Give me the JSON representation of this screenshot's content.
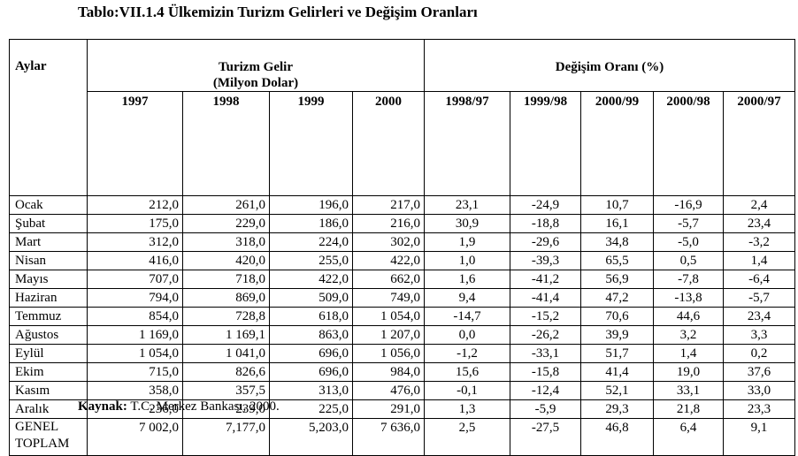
{
  "title": "Tablo:VII.1.4 Ülkemizin Turizm Gelirleri ve Değişim Oranları",
  "header": {
    "months_label": "Aylar",
    "group1_line1": "Turizm Gelir",
    "group1_line2": "(Milyon Dolar)",
    "group2": "Değişim Oranı (%)",
    "years": [
      "1997",
      "1998",
      "1999",
      "2000"
    ],
    "changes": [
      "1998/97",
      "1999/98",
      "2000/99",
      "2000/98",
      "2000/97"
    ]
  },
  "rows": [
    {
      "month": "Ocak",
      "v": [
        "212,0",
        "261,0",
        "196,0",
        "217,0"
      ],
      "c": [
        "23,1",
        "-24,9",
        "10,7",
        "-16,9",
        "2,4"
      ]
    },
    {
      "month": "Şubat",
      "v": [
        "175,0",
        "229,0",
        "186,0",
        "216,0"
      ],
      "c": [
        "30,9",
        "-18,8",
        "16,1",
        "-5,7",
        "23,4"
      ]
    },
    {
      "month": "Mart",
      "v": [
        "312,0",
        "318,0",
        "224,0",
        "302,0"
      ],
      "c": [
        "1,9",
        "-29,6",
        "34,8",
        "-5,0",
        "-3,2"
      ]
    },
    {
      "month": "Nisan",
      "v": [
        "416,0",
        "420,0",
        "255,0",
        "422,0"
      ],
      "c": [
        "1,0",
        "-39,3",
        "65,5",
        "0,5",
        "1,4"
      ]
    },
    {
      "month": "Mayıs",
      "v": [
        "707,0",
        "718,0",
        "422,0",
        "662,0"
      ],
      "c": [
        "1,6",
        "-41,2",
        "56,9",
        "-7,8",
        "-6,4"
      ]
    },
    {
      "month": "Haziran",
      "v": [
        "794,0",
        "869,0",
        "509,0",
        "749,0"
      ],
      "c": [
        "9,4",
        "-41,4",
        "47,2",
        "-13,8",
        "-5,7"
      ]
    },
    {
      "month": "Temmuz",
      "v": [
        "854,0",
        "728,8",
        "618,0",
        "1 054,0"
      ],
      "c": [
        "-14,7",
        "-15,2",
        "70,6",
        "44,6",
        "23,4"
      ]
    },
    {
      "month": "Ağustos",
      "v": [
        "1 169,0",
        "1 169,1",
        "863,0",
        "1 207,0"
      ],
      "c": [
        "0,0",
        "-26,2",
        "39,9",
        "3,2",
        "3,3"
      ]
    },
    {
      "month": "Eylül",
      "v": [
        "1 054,0",
        "1 041,0",
        "696,0",
        "1 056,0"
      ],
      "c": [
        "-1,2",
        "-33,1",
        "51,7",
        "1,4",
        "0,2"
      ]
    },
    {
      "month": "Ekim",
      "v": [
        "715,0",
        "826,6",
        "696,0",
        "984,0"
      ],
      "c": [
        "15,6",
        "-15,8",
        "41,4",
        "19,0",
        "37,6"
      ]
    },
    {
      "month": "Kasım",
      "v": [
        "358,0",
        "357,5",
        "313,0",
        "476,0"
      ],
      "c": [
        "-0,1",
        "-12,4",
        "52,1",
        "33,1",
        "33,0"
      ]
    },
    {
      "month": "Aralık",
      "v": [
        "236,0",
        "239,0",
        "225,0",
        "291,0"
      ],
      "c": [
        "1,3",
        "-5,9",
        "29,3",
        "21,8",
        "23,3"
      ]
    }
  ],
  "total": {
    "label_line1": "GENEL",
    "label_line2": "TOPLAM",
    "v": [
      "7 002,0",
      "7,177,0",
      "5,203,0",
      "7 636,0"
    ],
    "c": [
      "2,5",
      "-27,5",
      "46,8",
      "6,4",
      "9,1"
    ]
  },
  "source": {
    "label": "Kaynak:",
    "text": " T.C. Merkez Bankası, 2000."
  }
}
